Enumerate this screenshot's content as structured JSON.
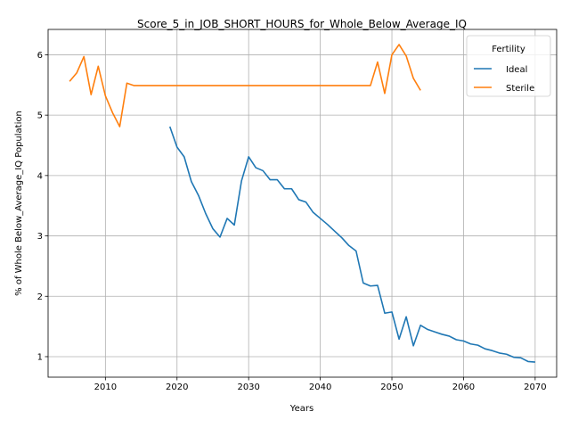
{
  "chart_data": {
    "type": "line",
    "title": "Score_5_in_JOB_SHORT_HOURS_for_Whole_Below_Average_IQ",
    "xlabel": "Years",
    "ylabel": "% of Whole Below_Average_IQ Population",
    "xlim": [
      2002,
      2073
    ],
    "ylim": [
      0.66,
      6.42
    ],
    "xticks": [
      2010,
      2020,
      2030,
      2040,
      2050,
      2060,
      2070
    ],
    "yticks": [
      1,
      2,
      3,
      4,
      5,
      6
    ],
    "grid": true,
    "legend": {
      "title": "Fertility",
      "placement": "top-right"
    },
    "series": [
      {
        "name": "Ideal",
        "color": "#1f77b4",
        "x": [
          2019,
          2020,
          2021,
          2022,
          2023,
          2024,
          2025,
          2026,
          2027,
          2028,
          2029,
          2030,
          2031,
          2032,
          2033,
          2034,
          2035,
          2036,
          2037,
          2038,
          2039,
          2040,
          2041,
          2042,
          2043,
          2044,
          2045,
          2046,
          2047,
          2048,
          2049,
          2050,
          2051,
          2052,
          2053,
          2054,
          2055,
          2056,
          2057,
          2058,
          2059,
          2060,
          2061,
          2062,
          2063,
          2064,
          2065,
          2066,
          2067,
          2068,
          2069,
          2070
        ],
        "y": [
          4.81,
          4.47,
          4.31,
          3.9,
          3.67,
          3.37,
          3.12,
          2.98,
          3.29,
          3.18,
          3.91,
          4.31,
          4.13,
          4.08,
          3.93,
          3.93,
          3.78,
          3.78,
          3.6,
          3.56,
          3.39,
          3.29,
          3.19,
          3.08,
          2.97,
          2.84,
          2.75,
          2.22,
          2.17,
          2.18,
          1.72,
          1.74,
          1.29,
          1.66,
          1.18,
          1.52,
          1.45,
          1.41,
          1.37,
          1.34,
          1.28,
          1.26,
          1.21,
          1.19,
          1.13,
          1.1,
          1.06,
          1.04,
          0.99,
          0.98,
          0.92,
          0.91
        ]
      },
      {
        "name": "Sterile",
        "color": "#ff7f0e",
        "x": [
          2005,
          2006,
          2007,
          2008,
          2009,
          2010,
          2011,
          2012,
          2013,
          2014,
          2015,
          2016,
          2017,
          2018,
          2019,
          2020,
          2021,
          2022,
          2023,
          2024,
          2025,
          2026,
          2027,
          2028,
          2029,
          2030,
          2031,
          2032,
          2033,
          2034,
          2035,
          2036,
          2037,
          2038,
          2039,
          2040,
          2041,
          2042,
          2043,
          2044,
          2045,
          2046,
          2047,
          2048,
          2049,
          2050,
          2051,
          2052,
          2053,
          2054
        ],
        "y": [
          5.56,
          5.7,
          5.97,
          5.34,
          5.81,
          5.32,
          5.04,
          4.81,
          5.53,
          5.49,
          5.49,
          5.49,
          5.49,
          5.49,
          5.49,
          5.49,
          5.49,
          5.49,
          5.49,
          5.49,
          5.49,
          5.49,
          5.49,
          5.49,
          5.49,
          5.49,
          5.49,
          5.49,
          5.49,
          5.49,
          5.49,
          5.49,
          5.49,
          5.49,
          5.49,
          5.49,
          5.49,
          5.49,
          5.49,
          5.49,
          5.49,
          5.49,
          5.49,
          5.88,
          5.36,
          6.0,
          6.17,
          5.98,
          5.61,
          5.41
        ]
      }
    ]
  }
}
